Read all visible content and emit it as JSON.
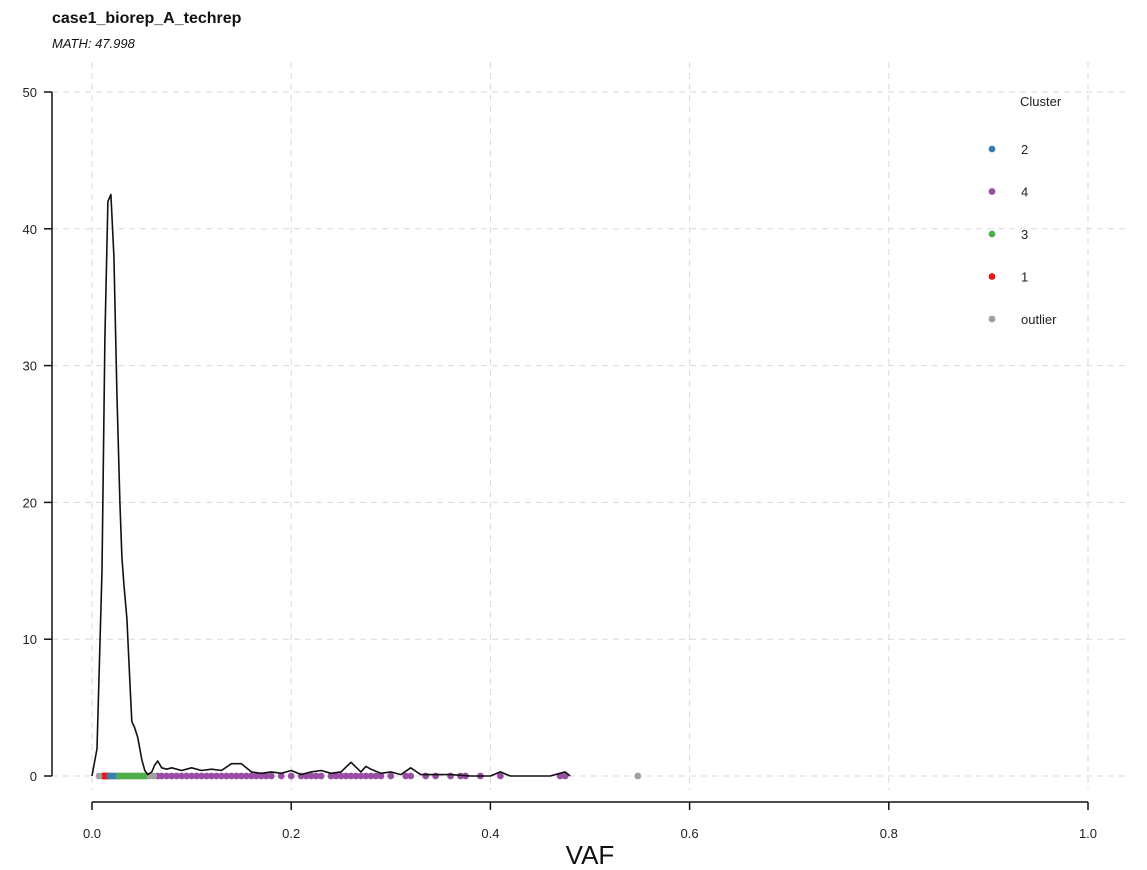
{
  "chart_data": {
    "type": "scatter",
    "title": "case1_biorep_A_techrep",
    "subtitle": "MATH: 47.998",
    "xlabel": "VAF",
    "ylabel": "",
    "xlim": [
      0,
      1
    ],
    "ylim": [
      0,
      50
    ],
    "x_ticks": [
      "0.0",
      "0.2",
      "0.4",
      "0.6",
      "0.8",
      "1.0"
    ],
    "y_ticks": [
      "0",
      "10",
      "20",
      "30",
      "40",
      "50"
    ],
    "grid": true,
    "legend": {
      "title": "Cluster",
      "placement": "top-right",
      "entries": [
        {
          "label": "2",
          "color": "#377eb8"
        },
        {
          "label": "4",
          "color": "#984ea3"
        },
        {
          "label": "3",
          "color": "#4daf4a"
        },
        {
          "label": "1",
          "color": "#e41a1c"
        },
        {
          "label": "outlier",
          "color": "#a0a0a0"
        }
      ]
    },
    "density_curve": {
      "x": [
        0.0,
        0.005,
        0.01,
        0.013,
        0.016,
        0.019,
        0.022,
        0.025,
        0.028,
        0.03,
        0.032,
        0.035,
        0.038,
        0.04,
        0.043,
        0.046,
        0.05,
        0.053,
        0.056,
        0.06,
        0.063,
        0.066,
        0.07,
        0.075,
        0.08,
        0.09,
        0.1,
        0.11,
        0.12,
        0.13,
        0.14,
        0.15,
        0.16,
        0.17,
        0.18,
        0.19,
        0.2,
        0.21,
        0.22,
        0.23,
        0.24,
        0.25,
        0.26,
        0.27,
        0.275,
        0.28,
        0.29,
        0.3,
        0.31,
        0.32,
        0.33,
        0.34,
        0.36,
        0.38,
        0.4,
        0.41,
        0.42,
        0.44,
        0.46,
        0.47,
        0.475,
        0.48
      ],
      "y": [
        0.0,
        2.0,
        15.0,
        32.0,
        42.0,
        42.5,
        38.0,
        28.0,
        20.0,
        16.0,
        14.0,
        11.5,
        7.0,
        4.0,
        3.5,
        2.8,
        1.2,
        0.4,
        0.1,
        0.3,
        0.8,
        1.1,
        0.6,
        0.5,
        0.6,
        0.4,
        0.6,
        0.4,
        0.5,
        0.4,
        0.9,
        0.9,
        0.3,
        0.2,
        0.3,
        0.2,
        0.4,
        0.1,
        0.3,
        0.4,
        0.2,
        0.3,
        1.0,
        0.3,
        0.7,
        0.5,
        0.2,
        0.3,
        0.1,
        0.6,
        0.1,
        0.1,
        0.1,
        0.0,
        0.0,
        0.3,
        0.0,
        0.0,
        0.0,
        0.2,
        0.3,
        0.0
      ]
    },
    "series": [
      {
        "name": "1",
        "color": "#e41a1c",
        "x": [
          0.011,
          0.012,
          0.013,
          0.014,
          0.015,
          0.016,
          0.017
        ]
      },
      {
        "name": "2",
        "color": "#377eb8",
        "x": [
          0.018,
          0.02,
          0.022,
          0.024,
          0.026
        ]
      },
      {
        "name": "3",
        "color": "#4daf4a",
        "x": [
          0.027,
          0.029,
          0.031,
          0.033,
          0.035,
          0.037,
          0.039,
          0.041,
          0.043,
          0.045,
          0.047,
          0.049,
          0.051,
          0.053,
          0.055
        ]
      },
      {
        "name": "4",
        "color": "#984ea3",
        "x": [
          0.066,
          0.07,
          0.075,
          0.08,
          0.085,
          0.09,
          0.095,
          0.1,
          0.105,
          0.11,
          0.115,
          0.12,
          0.125,
          0.13,
          0.135,
          0.14,
          0.145,
          0.15,
          0.155,
          0.16,
          0.165,
          0.17,
          0.175,
          0.18,
          0.19,
          0.2,
          0.21,
          0.215,
          0.22,
          0.225,
          0.23,
          0.24,
          0.245,
          0.25,
          0.255,
          0.26,
          0.265,
          0.27,
          0.275,
          0.28,
          0.285,
          0.29,
          0.3,
          0.315,
          0.32,
          0.335,
          0.345,
          0.36,
          0.37,
          0.375,
          0.39,
          0.41,
          0.47,
          0.475
        ]
      },
      {
        "name": "outlier",
        "color": "#a0a0a0",
        "x": [
          0.007,
          0.058,
          0.062,
          0.548
        ]
      }
    ]
  }
}
